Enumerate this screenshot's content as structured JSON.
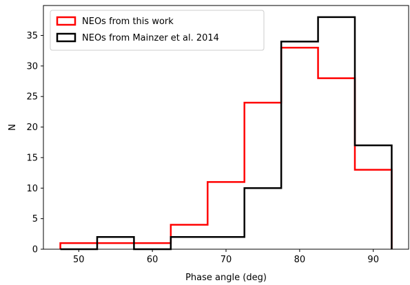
{
  "chart_data": {
    "type": "histogram-step",
    "title": "",
    "xlabel": "Phase angle (deg)",
    "ylabel": "N",
    "xlim": [
      45.2,
      94.8
    ],
    "ylim": [
      0,
      39.9
    ],
    "xticks": [
      50,
      60,
      70,
      80,
      90
    ],
    "yticks": [
      0,
      5,
      10,
      15,
      20,
      25,
      30,
      35
    ],
    "grid": false,
    "legend_position": "top-left",
    "series": [
      {
        "name": "NEOs from this work",
        "color": "#ff0000",
        "bin_edges": [
          47.5,
          52.5,
          57.5,
          62.5,
          67.5,
          72.5,
          77.5,
          82.5,
          87.5,
          92.5
        ],
        "counts": [
          1,
          1,
          1,
          4,
          11,
          24,
          33,
          28,
          13
        ]
      },
      {
        "name": "NEOs from Mainzer et al. 2014",
        "color": "#000000",
        "bin_edges": [
          47.5,
          52.5,
          57.5,
          62.5,
          67.5,
          72.5,
          77.5,
          82.5,
          87.5,
          92.5
        ],
        "counts": [
          0,
          2,
          0,
          2,
          2,
          10,
          34,
          38,
          17
        ]
      }
    ]
  }
}
